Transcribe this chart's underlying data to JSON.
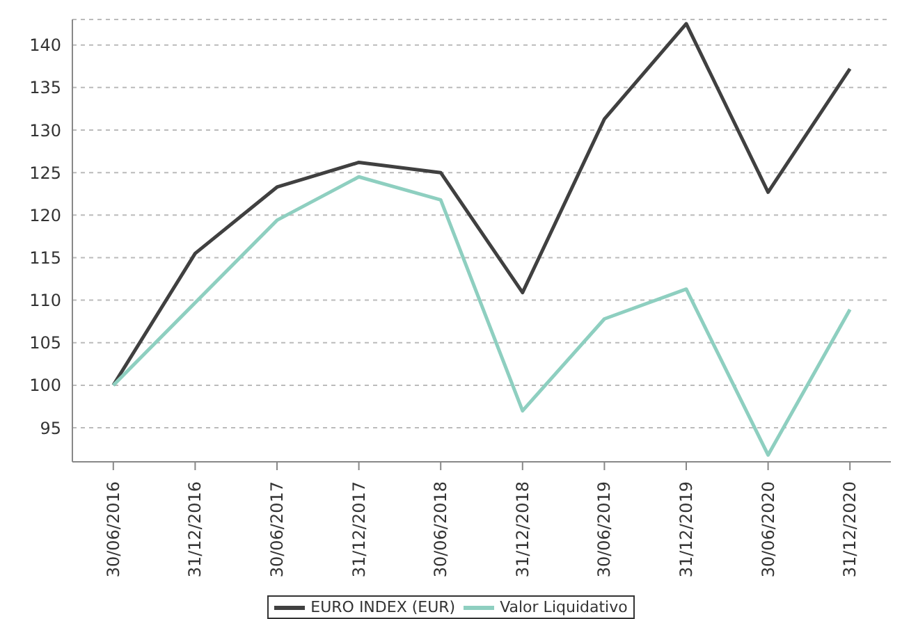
{
  "chart_data": {
    "type": "line",
    "categories": [
      "30/06/2016",
      "31/12/2016",
      "30/06/2017",
      "31/12/2017",
      "30/06/2018",
      "31/12/2018",
      "30/06/2019",
      "31/12/2019",
      "30/06/2020",
      "31/12/2020"
    ],
    "series": [
      {
        "name": "EURO INDEX (EUR)",
        "color": "#404040",
        "values": [
          100,
          115.5,
          123.3,
          126.2,
          125,
          110.9,
          131.3,
          142.5,
          122.7,
          137.2
        ]
      },
      {
        "name": "Valor Liquidativo",
        "color": "#8ecfc0",
        "values": [
          100,
          109.7,
          119.4,
          124.5,
          121.8,
          97,
          107.8,
          111.3,
          91.8,
          108.9
        ]
      }
    ],
    "ylim": [
      91,
      143
    ],
    "yticks": [
      95,
      100,
      105,
      110,
      115,
      120,
      125,
      130,
      135,
      140
    ],
    "grid": "y",
    "legend": "bottom",
    "marker": "none",
    "line_style": "solid"
  }
}
